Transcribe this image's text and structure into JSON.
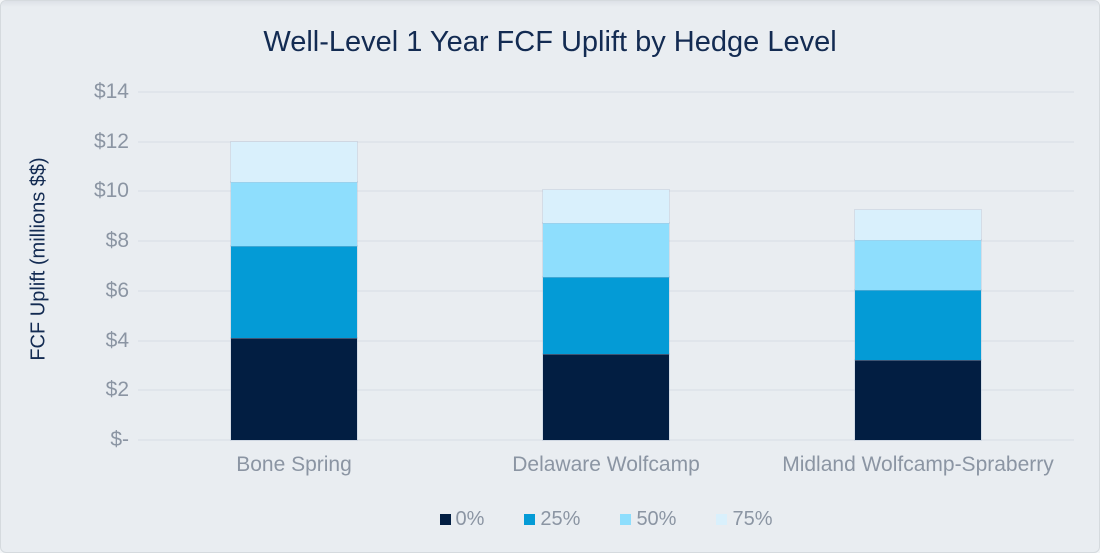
{
  "chart_data": {
    "type": "bar",
    "stacked": true,
    "title": "Well-Level 1 Year FCF Uplift by Hedge Level",
    "ylabel": "FCF Uplift (millions $$)",
    "xlabel": "",
    "categories": [
      "Bone Spring",
      "Delaware Wolfcamp",
      "Midland Wolfcamp-Spraberry"
    ],
    "series": [
      {
        "name": "0%",
        "color": "#021e42",
        "values": [
          4.1,
          3.45,
          3.2
        ]
      },
      {
        "name": "25%",
        "color": "#049bd6",
        "values": [
          3.7,
          3.1,
          2.85
        ]
      },
      {
        "name": "50%",
        "color": "#8edefd",
        "values": [
          2.6,
          2.2,
          2.0
        ]
      },
      {
        "name": "75%",
        "color": "#d9f0fc",
        "values": [
          1.6,
          1.3,
          1.2
        ]
      }
    ],
    "stack_totals": [
      12.0,
      10.05,
      9.25
    ],
    "ylim": [
      0,
      14
    ],
    "yticks": [
      {
        "value": 0,
        "label": "$-"
      },
      {
        "value": 2,
        "label": "$2"
      },
      {
        "value": 4,
        "label": "$4"
      },
      {
        "value": 6,
        "label": "$6"
      },
      {
        "value": 8,
        "label": "$8"
      },
      {
        "value": 10,
        "label": "$10"
      },
      {
        "value": 12,
        "label": "$12"
      },
      {
        "value": 14,
        "label": "$14"
      }
    ],
    "grid": true,
    "legend_position": "bottom",
    "legend_entries": [
      "0%",
      "25%",
      "50%",
      "75%"
    ]
  },
  "colors": {
    "background": "#e9edf1",
    "title_text": "#132b52",
    "axis_text": "#8b95a3",
    "gridline": "#e0e5eb"
  }
}
